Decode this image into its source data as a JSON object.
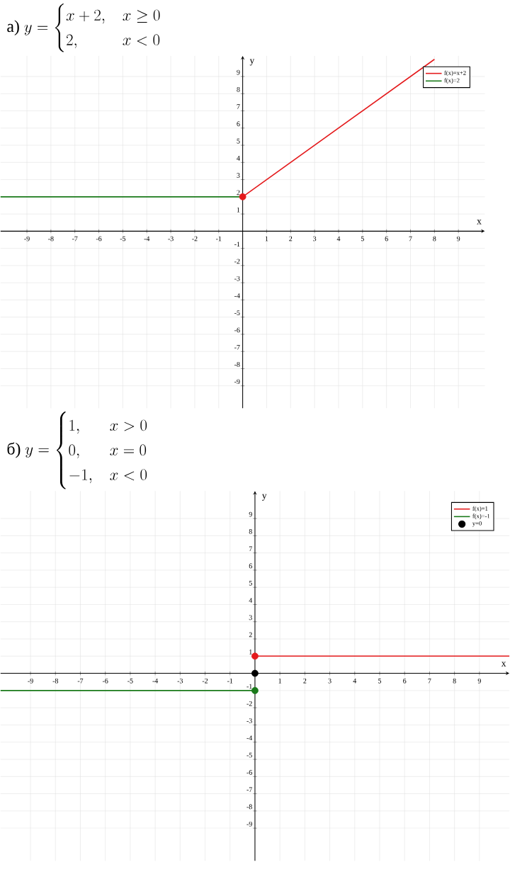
{
  "chart_data": [
    {
      "type": "line",
      "title": "а)",
      "subtitle": "y = \\begin{cases} x + 2, & x \\geq 0 \\\\ 2, & x < 0 \\end{cases}",
      "xlabel": "x",
      "ylabel": "y",
      "xlim": [
        -10.1,
        10.1
      ],
      "ylim": [
        -10.3,
        10.2
      ],
      "xticks": [
        -9,
        -8,
        -7,
        -6,
        -5,
        -4,
        -3,
        -2,
        -1,
        1,
        2,
        3,
        4,
        5,
        6,
        7,
        8,
        9
      ],
      "yticks": [
        -9,
        -8,
        -7,
        -6,
        -5,
        -4,
        -3,
        -2,
        -1,
        1,
        2,
        3,
        4,
        5,
        6,
        7,
        8,
        9
      ],
      "grid": true,
      "legend": "top right",
      "series": [
        {
          "name": "f(x)=x+2",
          "color": "#e41a1c",
          "x": [
            0,
            8
          ],
          "values": [
            2,
            10
          ]
        },
        {
          "name": "f(x)=2",
          "color": "#1a7a1a",
          "x": [
            -10.1,
            0
          ],
          "values": [
            2,
            2
          ]
        },
        {
          "type": "scatter",
          "color": "#e41a1c",
          "x": [
            0
          ],
          "values": [
            2
          ]
        }
      ]
    },
    {
      "type": "line",
      "title": "б)",
      "subtitle": "y = \\begin{cases} 1, & x > 0 \\\\ 0, & x = 0 \\\\ -1, & x < 0 \\end{cases}",
      "xlabel": "x",
      "ylabel": "y",
      "xlim": [
        -10.2,
        10.2
      ],
      "ylim": [
        -10.9,
        10.6
      ],
      "xticks": [
        -9,
        -8,
        -7,
        -6,
        -5,
        -4,
        -3,
        -2,
        -1,
        1,
        2,
        3,
        4,
        5,
        6,
        7,
        8,
        9
      ],
      "yticks": [
        -9,
        -8,
        -7,
        -6,
        -5,
        -4,
        -3,
        -2,
        -1,
        1,
        2,
        3,
        4,
        5,
        6,
        7,
        8,
        9
      ],
      "grid": true,
      "legend": "top right",
      "series": [
        {
          "name": "f(x)=1",
          "color": "#e41a1c",
          "x": [
            0,
            10.2
          ],
          "values": [
            1,
            1
          ]
        },
        {
          "name": "f(x)=-1",
          "color": "#1a7a1a",
          "x": [
            -10.2,
            0
          ],
          "values": [
            -1,
            -1
          ]
        },
        {
          "type": "scatter",
          "name": "y=0",
          "color": "#000000",
          "x": [
            0
          ],
          "values": [
            0
          ]
        },
        {
          "type": "scatter",
          "color": "#e41a1c",
          "x": [
            0
          ],
          "values": [
            1
          ]
        },
        {
          "type": "scatter",
          "color": "#1a7a1a",
          "x": [
            0
          ],
          "values": [
            -1
          ]
        }
      ]
    }
  ]
}
